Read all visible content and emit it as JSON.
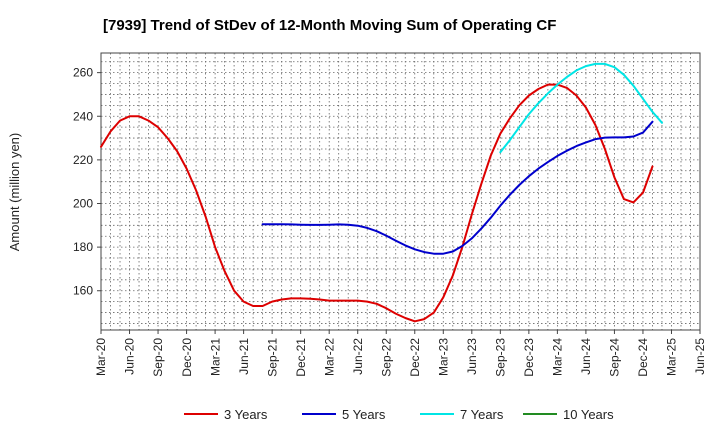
{
  "chart_data": {
    "type": "line",
    "title": "[7939]  Trend of StDev of 12-Month Moving Sum of Operating CF",
    "ylabel": "Amount (million yen)",
    "xlabel": "",
    "ylim": [
      142,
      269
    ],
    "yticks": [
      160,
      180,
      200,
      220,
      240,
      260
    ],
    "xlim": [
      "2020-03",
      "2025-06"
    ],
    "xticks": [
      "Mar-20",
      "Jun-20",
      "Sep-20",
      "Dec-20",
      "Mar-21",
      "Jun-21",
      "Sep-21",
      "Dec-21",
      "Mar-22",
      "Jun-22",
      "Sep-22",
      "Dec-22",
      "Mar-23",
      "Jun-23",
      "Sep-23",
      "Dec-23",
      "Mar-24",
      "Jun-24",
      "Sep-24",
      "Dec-24",
      "Mar-25",
      "Jun-25"
    ],
    "grid": true,
    "legend_position": "bottom",
    "series": [
      {
        "name": "3 Years",
        "color": "#dd0000",
        "points": [
          [
            "2020-03",
            226
          ],
          [
            "2020-04",
            233
          ],
          [
            "2020-05",
            238
          ],
          [
            "2020-06",
            240
          ],
          [
            "2020-07",
            240
          ],
          [
            "2020-08",
            238
          ],
          [
            "2020-09",
            235
          ],
          [
            "2020-10",
            230
          ],
          [
            "2020-11",
            224
          ],
          [
            "2020-12",
            216
          ],
          [
            "2020-13",
            206
          ],
          [
            "2021-02",
            194
          ],
          [
            "2021-03",
            180
          ],
          [
            "2021-04",
            169
          ],
          [
            "2021-05",
            160
          ],
          [
            "2021-06",
            155
          ],
          [
            "2021-07",
            153
          ],
          [
            "2021-08",
            153
          ],
          [
            "2021-09",
            155
          ],
          [
            "2021-10",
            156
          ],
          [
            "2021-11",
            156.5
          ],
          [
            "2021-12",
            156.5
          ],
          [
            "2022-01",
            156.3
          ],
          [
            "2022-02",
            156
          ],
          [
            "2022-03",
            155.5
          ],
          [
            "2022-04",
            155.5
          ],
          [
            "2022-05",
            155.5
          ],
          [
            "2022-06",
            155.5
          ],
          [
            "2022-07",
            155
          ],
          [
            "2022-08",
            154
          ],
          [
            "2022-09",
            152
          ],
          [
            "2022-10",
            149.5
          ],
          [
            "2022-11",
            147.5
          ],
          [
            "2022-12",
            146
          ],
          [
            "2023-01",
            147
          ],
          [
            "2023-02",
            150
          ],
          [
            "2023-03",
            157
          ],
          [
            "2023-04",
            167
          ],
          [
            "2023-05",
            180
          ],
          [
            "2023-06",
            195
          ],
          [
            "2023-07",
            209
          ],
          [
            "2023-08",
            222
          ],
          [
            "2023-09",
            232
          ],
          [
            "2023-10",
            239
          ],
          [
            "2023-11",
            245
          ],
          [
            "2023-12",
            249.5
          ],
          [
            "2024-01",
            252.5
          ],
          [
            "2024-02",
            254.5
          ],
          [
            "2024-03",
            254.5
          ],
          [
            "2024-04",
            253
          ],
          [
            "2024-05",
            249.5
          ],
          [
            "2024-06",
            244
          ],
          [
            "2024-07",
            236
          ],
          [
            "2024-08",
            225
          ],
          [
            "2024-09",
            212
          ],
          [
            "2024-10",
            202
          ],
          [
            "2024-11",
            200.5
          ],
          [
            "2024-12",
            205
          ],
          [
            "2025-01",
            217
          ]
        ]
      },
      {
        "name": "5 Years",
        "color": "#0000cc",
        "points": [
          [
            "2021-08",
            190.5
          ],
          [
            "2021-09",
            190.5
          ],
          [
            "2021-10",
            190.5
          ],
          [
            "2021-11",
            190.4
          ],
          [
            "2021-12",
            190.3
          ],
          [
            "2022-01",
            190.2
          ],
          [
            "2022-02",
            190.2
          ],
          [
            "2022-03",
            190.3
          ],
          [
            "2022-04",
            190.4
          ],
          [
            "2022-05",
            190.3
          ],
          [
            "2022-06",
            189.8
          ],
          [
            "2022-07",
            188.8
          ],
          [
            "2022-08",
            187.3
          ],
          [
            "2022-09",
            185.3
          ],
          [
            "2022-10",
            183
          ],
          [
            "2022-11",
            180.8
          ],
          [
            "2022-12",
            179
          ],
          [
            "2023-01",
            177.7
          ],
          [
            "2023-02",
            177
          ],
          [
            "2023-03",
            177
          ],
          [
            "2023-04",
            178
          ],
          [
            "2023-05",
            180.5
          ],
          [
            "2023-06",
            184
          ],
          [
            "2023-07",
            188.5
          ],
          [
            "2023-08",
            193.5
          ],
          [
            "2023-09",
            199
          ],
          [
            "2023-10",
            204
          ],
          [
            "2023-11",
            208.5
          ],
          [
            "2023-12",
            212.5
          ],
          [
            "2024-01",
            216
          ],
          [
            "2024-02",
            219
          ],
          [
            "2024-03",
            221.8
          ],
          [
            "2024-04",
            224.2
          ],
          [
            "2024-05",
            226.3
          ],
          [
            "2024-06",
            228
          ],
          [
            "2024-07",
            229.5
          ],
          [
            "2024-08",
            230.2
          ],
          [
            "2024-09",
            230.3
          ],
          [
            "2024-10",
            230.3
          ],
          [
            "2024-11",
            230.7
          ],
          [
            "2024-12",
            232.5
          ],
          [
            "2025-01",
            237.5
          ]
        ]
      },
      {
        "name": "7 Years",
        "color": "#00e5e5",
        "points": [
          [
            "2023-09",
            223.5
          ],
          [
            "2023-10",
            229
          ],
          [
            "2023-11",
            235
          ],
          [
            "2023-12",
            241
          ],
          [
            "2024-01",
            246
          ],
          [
            "2024-02",
            250.5
          ],
          [
            "2024-03",
            254.5
          ],
          [
            "2024-04",
            258
          ],
          [
            "2024-05",
            261
          ],
          [
            "2024-06",
            263
          ],
          [
            "2024-07",
            264
          ],
          [
            "2024-08",
            264
          ],
          [
            "2024-09",
            262.5
          ],
          [
            "2024-10",
            259
          ],
          [
            "2024-11",
            254
          ],
          [
            "2024-12",
            248
          ],
          [
            "2025-01",
            242
          ],
          [
            "2025-02",
            237
          ]
        ]
      },
      {
        "name": "10 Years",
        "color": "#228b22",
        "points": []
      }
    ]
  }
}
